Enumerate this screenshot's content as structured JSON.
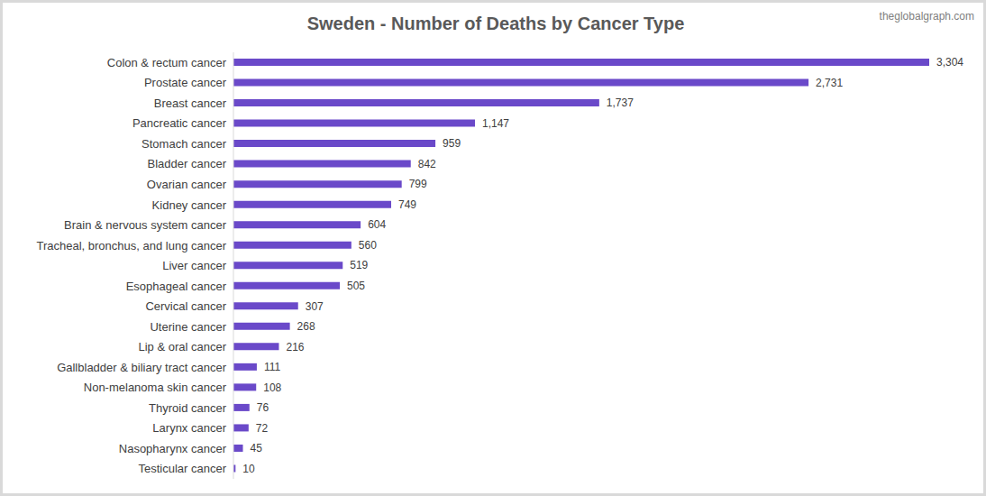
{
  "chart_data": {
    "type": "bar",
    "title": "Sweden - Number of Deaths by Cancer Type",
    "annotation": "theglobalgraph.com",
    "orientation": "horizontal",
    "categories": [
      "Colon & rectum cancer",
      "Prostate cancer",
      "Breast cancer",
      "Pancreatic cancer",
      "Stomach cancer",
      "Bladder cancer",
      "Ovarian cancer",
      "Kidney cancer",
      "Brain & nervous system cancer",
      "Tracheal, bronchus, and lung cancer",
      "Liver cancer",
      "Esophageal cancer",
      "Cervical cancer",
      "Uterine cancer",
      "Lip & oral cancer",
      "Gallbladder & biliary tract cancer",
      "Non-melanoma skin cancer",
      "Thyroid cancer",
      "Larynx cancer",
      "Nasopharynx cancer",
      "Testicular cancer"
    ],
    "values": [
      3304,
      2731,
      1737,
      1147,
      959,
      842,
      799,
      749,
      604,
      560,
      519,
      505,
      307,
      268,
      216,
      111,
      108,
      76,
      72,
      45,
      10
    ],
    "value_labels": [
      "3,304",
      "2,731",
      "1,737",
      "1,147",
      "959",
      "842",
      "799",
      "749",
      "604",
      "560",
      "519",
      "505",
      "307",
      "268",
      "216",
      "111",
      "108",
      "76",
      "72",
      "45",
      "10"
    ],
    "color": "#6a49c9",
    "xlim": [
      0,
      3304
    ],
    "data_labels": true,
    "tick_labels": "y",
    "grid": false
  }
}
